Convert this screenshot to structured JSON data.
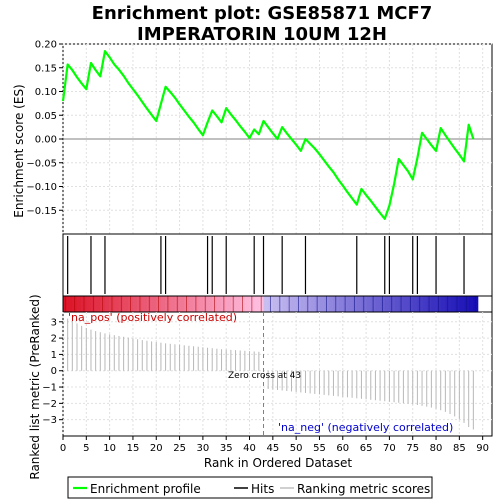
{
  "title_line1": "Enrichment plot: GSE85871 MCF7",
  "title_line2": "IMPERATORIN 10UM 12H",
  "es_ylabel": "Enrichment score (ES)",
  "rank_ylabel": "Ranked list metric (PreRanked)",
  "xlabel": "Rank in Ordered Dataset",
  "zero_cross_label": "Zero cross at 43",
  "pos_label": "'na_pos' (positively correlated)",
  "neg_label": "'na_neg' (negatively correlated)",
  "legend": {
    "enrichment": "Enrichment profile",
    "hits": "Hits",
    "ranking": "Ranking metric scores"
  },
  "colors": {
    "enrichment": "#00ff00",
    "pos_text": "#cc0000",
    "neg_text": "#0000cc"
  },
  "chart_data": {
    "type": "line",
    "x_range": [
      0,
      92
    ],
    "x_ticks": [
      0,
      5,
      10,
      15,
      20,
      25,
      30,
      35,
      40,
      45,
      50,
      55,
      60,
      65,
      70,
      75,
      80,
      85,
      90
    ],
    "es_ylim": [
      -0.2,
      0.2
    ],
    "es_ticks": [
      -0.15,
      -0.1,
      -0.05,
      0.0,
      0.05,
      0.1,
      0.15,
      0.2
    ],
    "es_tick_labels": [
      "−0.15",
      "−0.10",
      "−0.05",
      "0.00",
      "0.05",
      "0.10",
      "0.15",
      "0.20"
    ],
    "rank_ylim": [
      -4,
      3.6
    ],
    "rank_ticks": [
      -3,
      -2,
      -1,
      0,
      1,
      2,
      3
    ],
    "rank_tick_labels": [
      "−3",
      "−2",
      "−1",
      "0",
      "1",
      "2",
      "3"
    ],
    "zero_cross": 43,
    "n_genes": 89,
    "enrichment_profile": {
      "x": [
        0,
        1,
        2,
        3,
        4,
        5,
        6,
        7,
        8,
        9,
        10,
        11,
        12,
        13,
        14,
        15,
        16,
        17,
        18,
        19,
        20,
        21,
        22,
        23,
        24,
        25,
        26,
        27,
        28,
        29,
        30,
        31,
        32,
        33,
        34,
        35,
        36,
        37,
        38,
        39,
        40,
        41,
        42,
        43,
        44,
        45,
        46,
        47,
        48,
        49,
        50,
        51,
        52,
        53,
        54,
        55,
        56,
        57,
        58,
        59,
        60,
        61,
        62,
        63,
        64,
        65,
        66,
        67,
        68,
        69,
        70,
        71,
        72,
        73,
        74,
        75,
        76,
        77,
        78,
        79,
        80,
        81,
        82,
        83,
        84,
        85,
        86,
        87,
        88
      ],
      "y": [
        0.08,
        0.157,
        0.145,
        0.13,
        0.117,
        0.105,
        0.16,
        0.145,
        0.132,
        0.185,
        0.172,
        0.157,
        0.146,
        0.133,
        0.118,
        0.105,
        0.092,
        0.078,
        0.064,
        0.051,
        0.038,
        0.074,
        0.11,
        0.099,
        0.087,
        0.073,
        0.06,
        0.047,
        0.035,
        0.021,
        0.008,
        0.035,
        0.06,
        0.048,
        0.035,
        0.065,
        0.052,
        0.04,
        0.027,
        0.015,
        0.002,
        0.02,
        0.01,
        0.038,
        0.025,
        0.012,
        0.0,
        0.025,
        0.012,
        0.0,
        -0.012,
        -0.025,
        0.0,
        -0.01,
        -0.02,
        -0.032,
        -0.045,
        -0.058,
        -0.07,
        -0.085,
        -0.098,
        -0.112,
        -0.125,
        -0.138,
        -0.105,
        -0.118,
        -0.13,
        -0.143,
        -0.156,
        -0.168,
        -0.14,
        -0.095,
        -0.042,
        -0.055,
        -0.068,
        -0.085,
        -0.04,
        0.013,
        0.0,
        -0.013,
        -0.025,
        0.023,
        0.008,
        -0.006,
        -0.02,
        -0.033,
        -0.047,
        0.03,
        0.0
      ]
    },
    "hits": [
      1,
      6,
      9,
      21,
      22,
      31,
      32,
      35,
      41,
      43,
      47,
      52,
      63,
      69,
      70,
      75,
      76,
      80,
      86
    ],
    "ranking_metric": {
      "x": [
        1,
        2,
        3,
        4,
        5,
        6,
        7,
        8,
        9,
        10,
        11,
        12,
        13,
        14,
        15,
        16,
        17,
        18,
        19,
        20,
        21,
        22,
        23,
        24,
        25,
        26,
        27,
        28,
        29,
        30,
        31,
        32,
        33,
        34,
        35,
        36,
        37,
        38,
        39,
        40,
        41,
        42,
        43,
        44,
        45,
        46,
        47,
        48,
        49,
        50,
        51,
        52,
        53,
        54,
        55,
        56,
        57,
        58,
        59,
        60,
        61,
        62,
        63,
        64,
        65,
        66,
        67,
        68,
        69,
        70,
        71,
        72,
        73,
        74,
        75,
        76,
        77,
        78,
        79,
        80,
        81,
        82,
        83,
        84,
        85,
        86,
        87,
        88
      ],
      "values": [
        3.2,
        3.05,
        2.9,
        2.75,
        2.62,
        2.52,
        2.43,
        2.36,
        2.29,
        2.23,
        2.18,
        2.13,
        2.08,
        2.03,
        1.98,
        1.93,
        1.88,
        1.84,
        1.8,
        1.76,
        1.72,
        1.68,
        1.65,
        1.62,
        1.59,
        1.56,
        1.53,
        1.5,
        1.47,
        1.44,
        1.41,
        1.38,
        1.35,
        1.32,
        1.3,
        1.28,
        1.26,
        1.24,
        1.22,
        1.2,
        1.18,
        1.16,
        0.0,
        -1.12,
        -1.15,
        -1.18,
        -1.21,
        -1.24,
        -1.27,
        -1.3,
        -1.33,
        -1.36,
        -1.39,
        -1.42,
        -1.45,
        -1.48,
        -1.51,
        -1.54,
        -1.57,
        -1.6,
        -1.63,
        -1.66,
        -1.69,
        -1.72,
        -1.75,
        -1.78,
        -1.81,
        -1.84,
        -1.87,
        -1.9,
        -1.93,
        -1.96,
        -1.99,
        -2.02,
        -2.06,
        -2.1,
        -2.15,
        -2.2,
        -2.26,
        -2.33,
        -2.42,
        -2.52,
        -2.65,
        -2.8,
        -2.98,
        -3.2,
        -3.45,
        -3.6
      ]
    }
  }
}
